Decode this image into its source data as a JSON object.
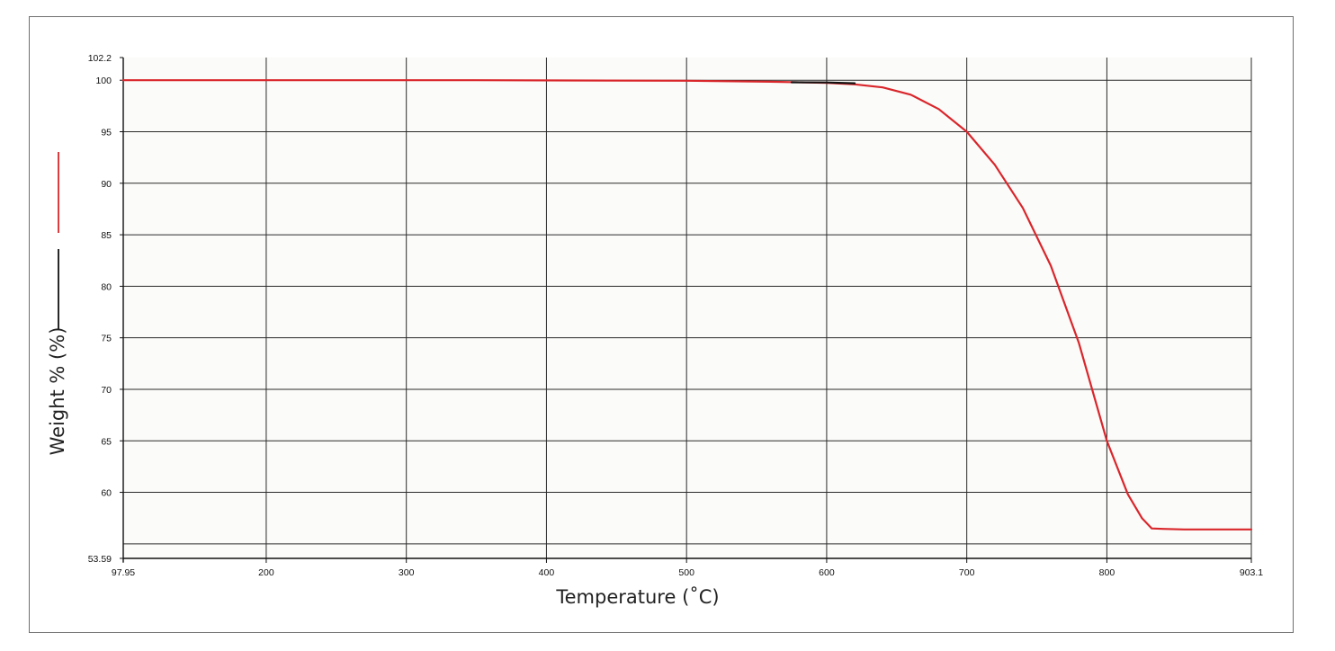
{
  "chart_data": {
    "type": "line",
    "xlabel": "Temperature (˚C)",
    "ylabel": "Weight % (%)",
    "xlim": [
      97.95,
      903.1
    ],
    "ylim": [
      53.59,
      102.2
    ],
    "x_ticks": [
      {
        "value": 97.95,
        "label": "97.95"
      },
      {
        "value": 200,
        "label": "200"
      },
      {
        "value": 300,
        "label": "300"
      },
      {
        "value": 400,
        "label": "400"
      },
      {
        "value": 500,
        "label": "500"
      },
      {
        "value": 600,
        "label": "600"
      },
      {
        "value": 700,
        "label": "700"
      },
      {
        "value": 800,
        "label": "800"
      },
      {
        "value": 903.1,
        "label": "903.1"
      }
    ],
    "y_ticks": [
      {
        "value": 53.59,
        "label": "53.59"
      },
      {
        "value": 60,
        "label": "60"
      },
      {
        "value": 65,
        "label": "65"
      },
      {
        "value": 70,
        "label": "70"
      },
      {
        "value": 75,
        "label": "75"
      },
      {
        "value": 80,
        "label": "80"
      },
      {
        "value": 85,
        "label": "85"
      },
      {
        "value": 90,
        "label": "90"
      },
      {
        "value": 95,
        "label": "95"
      },
      {
        "value": 100,
        "label": "100"
      },
      {
        "value": 102.2,
        "label": "102.2"
      }
    ],
    "y_gridlines": [
      55,
      60,
      65,
      70,
      75,
      80,
      85,
      90,
      95,
      100
    ],
    "grid": true,
    "legend_swatches": [
      {
        "color": "#d9262b"
      },
      {
        "color": "#111111"
      }
    ],
    "series": [
      {
        "color": "#d9262b",
        "x": [
          97.95,
          200,
          350,
          500,
          560,
          600,
          620,
          640,
          660,
          680,
          700,
          720,
          740,
          760,
          780,
          800,
          815,
          825,
          832,
          840,
          855,
          903.1
        ],
        "y": [
          100.0,
          100.0,
          100.0,
          99.95,
          99.85,
          99.75,
          99.6,
          99.3,
          98.6,
          97.2,
          95.0,
          91.8,
          87.6,
          82.0,
          74.5,
          65.0,
          59.8,
          57.5,
          56.5,
          56.45,
          56.4,
          56.4
        ]
      },
      {
        "color": "#111111",
        "x": [
          575,
          600,
          620
        ],
        "y": [
          99.8,
          99.78,
          99.7
        ]
      }
    ]
  }
}
